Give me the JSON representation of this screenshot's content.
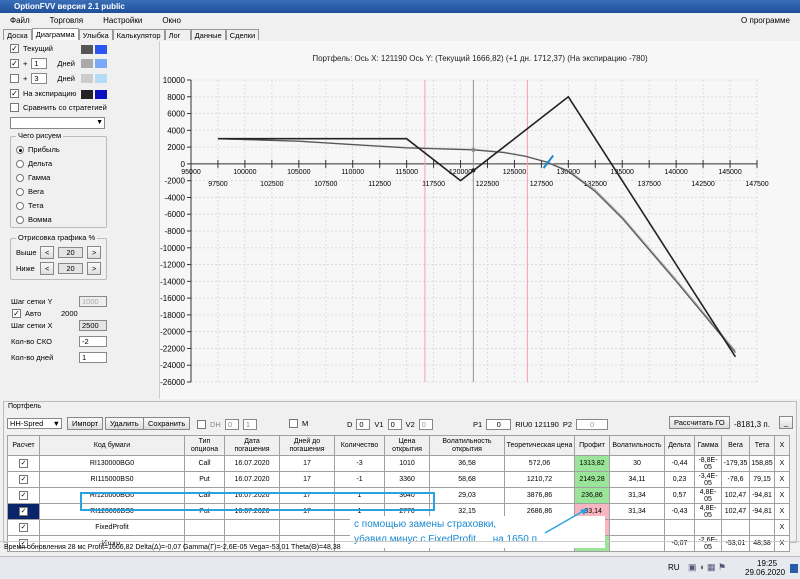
{
  "app": {
    "title": "OptionFVV версия 2.1 public"
  },
  "menu": [
    "Файл",
    "Торговля",
    "Настройки",
    "Окно"
  ],
  "menu_right": "О программе",
  "tabs": [
    "Доска",
    "Диаграмма",
    "Улыбка",
    "Калькулятор",
    "Лог",
    "Данные",
    "Сделки"
  ],
  "active_tab": "Диаграмма",
  "left": {
    "current": "Текущий",
    "plus": "+",
    "days": "Дней",
    "plus1_value": "1",
    "plus3_value": "3",
    "expiration": "На экспирацию",
    "compare": "Сравнить со стратегией",
    "colors": {
      "current": [
        "#555555",
        "#2a55ee"
      ],
      "plus1": [
        "#aaaaaa",
        "#7aaaf5"
      ],
      "plus3": [
        "#cccccc",
        "#b5dcf7"
      ],
      "expiration": [
        "#222222",
        "#0a10c0"
      ]
    },
    "what_group": "Чего рисуем",
    "what_options": [
      "Прибыль",
      "Дельта",
      "Гамма",
      "Вега",
      "Тета",
      "Вомма"
    ],
    "draw_group": "Отрисовка графика %",
    "above": "Выше",
    "below": "Ниже",
    "above_value": "20",
    "below_value": "20",
    "prev": "<",
    "next": ">",
    "grid_y": "Шаг сетки Y",
    "grid_y_value": "1000",
    "auto": "Авто",
    "auto_value": "2000",
    "grid_x": "Шаг сетки X",
    "grid_x_value": "2500",
    "sko": "Кол-во СКО",
    "sko_value": "-2",
    "days_count": "Кол-во дней",
    "days_count_value": "1"
  },
  "chart_data": {
    "type": "line",
    "title": "Портфель: Ось X: 121190 Ось Y:  (Текущий 1666,82)  (+1 дн. 1712,37)  (На экспирацию -780)",
    "xlim": [
      95000,
      147500
    ],
    "ylim": [
      -26000,
      10000
    ],
    "grid": true,
    "x_ticks_top": [
      "95000",
      "100000",
      "105000",
      "110000",
      "115000",
      "120000",
      "125000",
      "130000",
      "135000",
      "140000",
      "145000"
    ],
    "x_ticks_bottom": [
      "97500",
      "102500",
      "107500",
      "112500",
      "117500",
      "122500",
      "127500",
      "132500",
      "137500",
      "142500",
      "147500"
    ],
    "y_ticks": [
      "10000",
      "8000",
      "6000",
      "4000",
      "2000",
      "0",
      "-2000",
      "-4000",
      "-6000",
      "-8000",
      "-10000",
      "-12000",
      "-14000",
      "-16000",
      "-18000",
      "-20000",
      "-22000",
      "-24000",
      "-26000"
    ],
    "current_price": 121190,
    "sd_lines": [
      116700,
      126200
    ],
    "series": [
      {
        "x": [
          97500,
          115000,
          120000,
          130000,
          145500
        ],
        "y": [
          3000,
          3000,
          -2000,
          8000,
          -23000
        ],
        "color": "#222222"
      },
      {
        "x": [
          97500,
          105000,
          110000,
          115000,
          121190,
          124000,
          126000,
          128000,
          130000,
          132500,
          135000,
          140000,
          145500
        ],
        "y": [
          3000,
          2700,
          2300,
          1900,
          1667,
          1350,
          900,
          200,
          -900,
          -3300,
          -6500,
          -14000,
          -22500
        ],
        "color": "#555555"
      },
      {
        "x": [
          97500,
          105000,
          110000,
          115000,
          121190,
          124000,
          126000,
          128000,
          130000,
          132500,
          135000,
          140000,
          145500
        ],
        "y": [
          3000,
          2720,
          2330,
          1950,
          1712,
          1400,
          950,
          250,
          -800,
          -3100,
          -6300,
          -13800,
          -22300
        ],
        "color": "#aaaaaa"
      }
    ]
  },
  "portfolio": {
    "label": "Портфель",
    "strategy": "HH-Spred",
    "import": "Импорт",
    "delete": "Удалить",
    "save": "Сохранить",
    "dh": "DH",
    "dh1": "0",
    "dh2": "1",
    "m": "M",
    "d": "D",
    "d_val": "0",
    "v1": "V1",
    "v1_val": "0",
    "v2": "V2",
    "v2_val": "0",
    "p1": "P1",
    "p1_val": "0",
    "ticker": "RIU0 121190",
    "p2": "P2",
    "p2_val": "0",
    "calc_go": "Рассчитать ГО",
    "go_value": "-8181,3 п.",
    "minimize": "_"
  },
  "table": {
    "headers": [
      "Расчет",
      "Код бумаги",
      "Тип опциона",
      "Дата погашения",
      "Дней до погашения",
      "Количество",
      "Цена открытия",
      "Волатильность открытия",
      "Теоретическая цена",
      "Профит",
      "Волатильность",
      "Дельта",
      "Гамма",
      "Вега",
      "Тета",
      "X"
    ],
    "rows": [
      [
        "RI130000BG0",
        "Call",
        "16.07.2020",
        "17",
        "-3",
        "1010",
        "36,58",
        "572,06",
        "1313,82",
        "30",
        "-0,44",
        "-8,8E-05",
        "-179,35",
        "158,85",
        "X"
      ],
      [
        "RI115000BS0",
        "Put",
        "16.07.2020",
        "17",
        "-1",
        "3360",
        "58,68",
        "1210,72",
        "2149,28",
        "34,11",
        "0,23",
        "-3,4E-05",
        "-78,6",
        "79,15",
        "X"
      ],
      [
        "RI120000BG0",
        "Call",
        "16.07.2020",
        "17",
        "1",
        "3640",
        "29,03",
        "3876,86",
        "236,86",
        "31,34",
        "0,57",
        "4,8E-05",
        "102,47",
        "-94,81",
        "X"
      ],
      [
        "RI120000BS0",
        "Put",
        "16.07.2020",
        "17",
        "1",
        "2770",
        "32,15",
        "2686,86",
        "-83,14",
        "31,34",
        "-0,43",
        "4,8E-05",
        "102,47",
        "-94,81",
        "X"
      ],
      [
        "FixedProfit",
        "",
        "",
        "",
        "",
        "",
        "",
        "",
        "-1950",
        "",
        "",
        "",
        "",
        "",
        "X"
      ],
      [
        "Итого:",
        "",
        "",
        "",
        "",
        "",
        "",
        "",
        "1666,82",
        "",
        "-0,07",
        "-2,6E-05",
        "-53,01",
        "48,38",
        "X"
      ]
    ],
    "profit_colors": [
      "green",
      "green",
      "green",
      "pink",
      "pink",
      "green"
    ]
  },
  "annotation": {
    "line1": "с помощью замены страховки,",
    "line2": "убавил минус с FixedProfit",
    "line3": "на 1650 п."
  },
  "status": "Время обновления 28 мс  Profit=1666,82 Delta(Δ)=-0,07 Gamma(Γ)=-2,6E-05 Vega=-53,01 Theta(Θ)=48,38",
  "taskbar": {
    "lang": "RU",
    "time": "19:25",
    "date": "29.06.2020"
  }
}
